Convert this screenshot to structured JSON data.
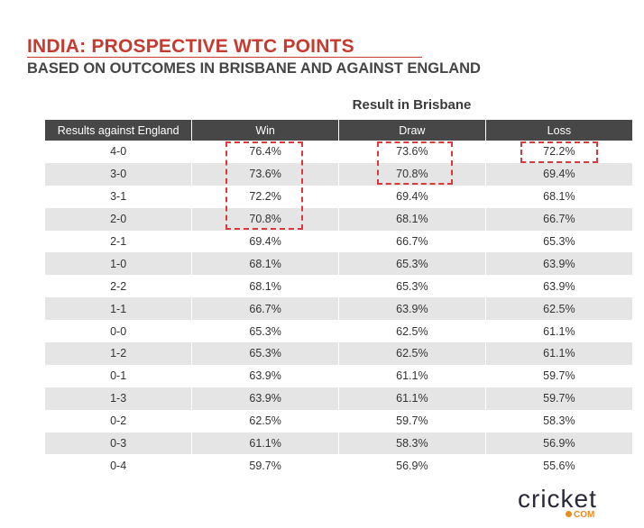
{
  "title": "INDIA: PROSPECTIVE WTC POINTS",
  "subtitle": "BASED ON OUTCOMES IN BRISBANE AND AGAINST ENGLAND",
  "group_label": "Result in Brisbane",
  "headers": [
    "Results against England",
    "Win",
    "Draw",
    "Loss"
  ],
  "rows": [
    [
      "4-0",
      "76.4%",
      "73.6%",
      "72.2%"
    ],
    [
      "3-0",
      "73.6%",
      "70.8%",
      "69.4%"
    ],
    [
      "3-1",
      "72.2%",
      "69.4%",
      "68.1%"
    ],
    [
      "2-0",
      "70.8%",
      "68.1%",
      "66.7%"
    ],
    [
      "2-1",
      "69.4%",
      "66.7%",
      "65.3%"
    ],
    [
      "1-0",
      "68.1%",
      "65.3%",
      "63.9%"
    ],
    [
      "2-2",
      "68.1%",
      "65.3%",
      "63.9%"
    ],
    [
      "1-1",
      "66.7%",
      "63.9%",
      "62.5%"
    ],
    [
      "0-0",
      "65.3%",
      "62.5%",
      "61.1%"
    ],
    [
      "1-2",
      "65.3%",
      "62.5%",
      "61.1%"
    ],
    [
      "0-1",
      "63.9%",
      "61.1%",
      "59.7%"
    ],
    [
      "1-3",
      "63.9%",
      "61.1%",
      "59.7%"
    ],
    [
      "0-2",
      "62.5%",
      "59.7%",
      "58.3%"
    ],
    [
      "0-3",
      "61.1%",
      "58.3%",
      "56.9%"
    ],
    [
      "0-4",
      "59.7%",
      "56.9%",
      "55.6%"
    ]
  ],
  "logo": {
    "text": "cricket",
    "suffix": "COM"
  },
  "colors": {
    "accent": "#c73a2f",
    "header_bg": "#474747",
    "alt_row": "#e5e5e5",
    "highlight": "#d9393b"
  }
}
